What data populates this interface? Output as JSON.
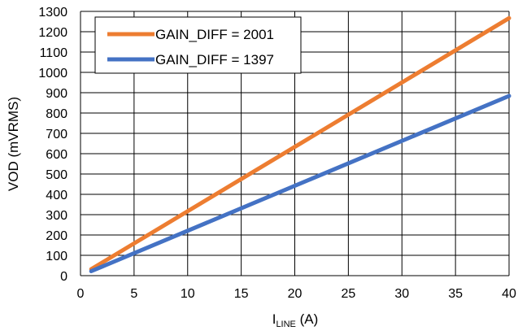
{
  "chart_data": {
    "type": "line",
    "xlabel_main": "I",
    "xlabel_sub": "LINE",
    "xlabel_unit": " (A)",
    "ylabel": "VOD (mVRMS)",
    "xlim": [
      0,
      40
    ],
    "ylim": [
      0,
      1300
    ],
    "xticks": [
      0,
      5,
      10,
      15,
      20,
      25,
      30,
      35,
      40
    ],
    "yticks": [
      0,
      100,
      200,
      300,
      400,
      500,
      600,
      700,
      800,
      900,
      1000,
      1100,
      1200,
      1300
    ],
    "grid": true,
    "legend_position": "top-left",
    "series": [
      {
        "name": "GAIN_DIFF = 2001",
        "color": "#ED7D31",
        "x": [
          1,
          40
        ],
        "y": [
          32,
          1267
        ]
      },
      {
        "name": "GAIN_DIFF = 1397",
        "color": "#4472C4",
        "x": [
          1,
          40
        ],
        "y": [
          22,
          884
        ]
      }
    ]
  }
}
